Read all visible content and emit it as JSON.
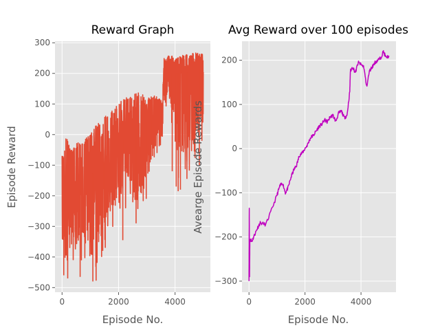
{
  "chart_data": [
    {
      "type": "line",
      "title": "Reward Graph",
      "xlabel": "Episode No.",
      "ylabel": "Episode Reward",
      "xlim": [
        -250,
        5250
      ],
      "ylim": [
        -515,
        305
      ],
      "xticks": [
        0,
        2000,
        4000
      ],
      "yticks": [
        -500,
        -400,
        -300,
        -200,
        -100,
        0,
        100,
        200,
        300
      ],
      "grid": true,
      "legend": "none",
      "color": "#e24a33",
      "series": [
        {
          "x": [
            0,
            50,
            150,
            300,
            500,
            700,
            1000,
            1200,
            1500,
            1800,
            2000,
            2200,
            2500,
            2800,
            3000,
            3300,
            3550,
            3600,
            3800,
            4000,
            4200,
            4500,
            4800,
            5000
          ],
          "high": [
            -50,
            -80,
            0,
            -50,
            -30,
            -20,
            0,
            30,
            60,
            80,
            100,
            120,
            130,
            140,
            120,
            130,
            110,
            250,
            260,
            255,
            260,
            265,
            270,
            265
          ],
          "low": [
            -420,
            -400,
            -470,
            -440,
            -380,
            -420,
            -400,
            -480,
            -350,
            -300,
            -260,
            -250,
            -220,
            -280,
            -150,
            -80,
            -40,
            80,
            110,
            -140,
            -180,
            -150,
            -40,
            -20
          ],
          "mid": [
            -300,
            -280,
            -260,
            -230,
            -200,
            -170,
            -140,
            -110,
            -80,
            -50,
            -30,
            -10,
            10,
            30,
            40,
            55,
            60,
            190,
            195,
            200,
            200,
            205,
            215,
            210
          ]
        }
      ],
      "spikes": [
        {
          "x": 60,
          "y": -460
        },
        {
          "x": 200,
          "y": -470
        },
        {
          "x": 640,
          "y": -465
        },
        {
          "x": 1090,
          "y": -480
        },
        {
          "x": 1400,
          "y": -400
        },
        {
          "x": 1440,
          "y": -380
        },
        {
          "x": 1530,
          "y": -370
        },
        {
          "x": 2150,
          "y": -345
        },
        {
          "x": 2620,
          "y": -290
        },
        {
          "x": 2980,
          "y": -210
        },
        {
          "x": 3200,
          "y": -70
        },
        {
          "x": 3900,
          "y": -120
        },
        {
          "x": 4040,
          "y": -170
        },
        {
          "x": 4110,
          "y": -185
        },
        {
          "x": 4190,
          "y": -180
        },
        {
          "x": 4420,
          "y": -145
        },
        {
          "x": 4860,
          "y": -100
        }
      ]
    },
    {
      "type": "line",
      "title": "Avg Reward over 100 episodes",
      "xlabel": "Episode No.",
      "ylabel": "Avearge Episode Rewards",
      "xlim": [
        -250,
        5250
      ],
      "ylim": [
        -325,
        243
      ],
      "xticks": [
        0,
        2000,
        4000
      ],
      "yticks": [
        -300,
        -200,
        -100,
        0,
        100,
        200
      ],
      "grid": true,
      "legend": "none",
      "color": "#bf00bf",
      "series": [
        {
          "x": [
            0,
            10,
            20,
            30,
            50,
            100,
            200,
            300,
            400,
            600,
            800,
            1000,
            1100,
            1200,
            1300,
            1400,
            1500,
            1600,
            1700,
            1800,
            1900,
            2000,
            2100,
            2200,
            2300,
            2400,
            2500,
            2600,
            2700,
            2800,
            2900,
            3000,
            3100,
            3200,
            3300,
            3400,
            3500,
            3600,
            3620,
            3700,
            3800,
            3900,
            4000,
            4100,
            4200,
            4300,
            4400,
            4500,
            4600,
            4700,
            4800,
            4900,
            5000
          ],
          "y": [
            -300,
            -135,
            -290,
            -210,
            -205,
            -210,
            -195,
            -180,
            -168,
            -172,
            -140,
            -105,
            -85,
            -78,
            -100,
            -88,
            -65,
            -48,
            -38,
            -15,
            -10,
            0,
            10,
            25,
            30,
            40,
            50,
            55,
            65,
            60,
            72,
            75,
            62,
            80,
            85,
            70,
            75,
            130,
            175,
            185,
            172,
            195,
            190,
            185,
            140,
            175,
            185,
            195,
            200,
            205,
            220,
            205,
            210
          ]
        }
      ]
    }
  ]
}
